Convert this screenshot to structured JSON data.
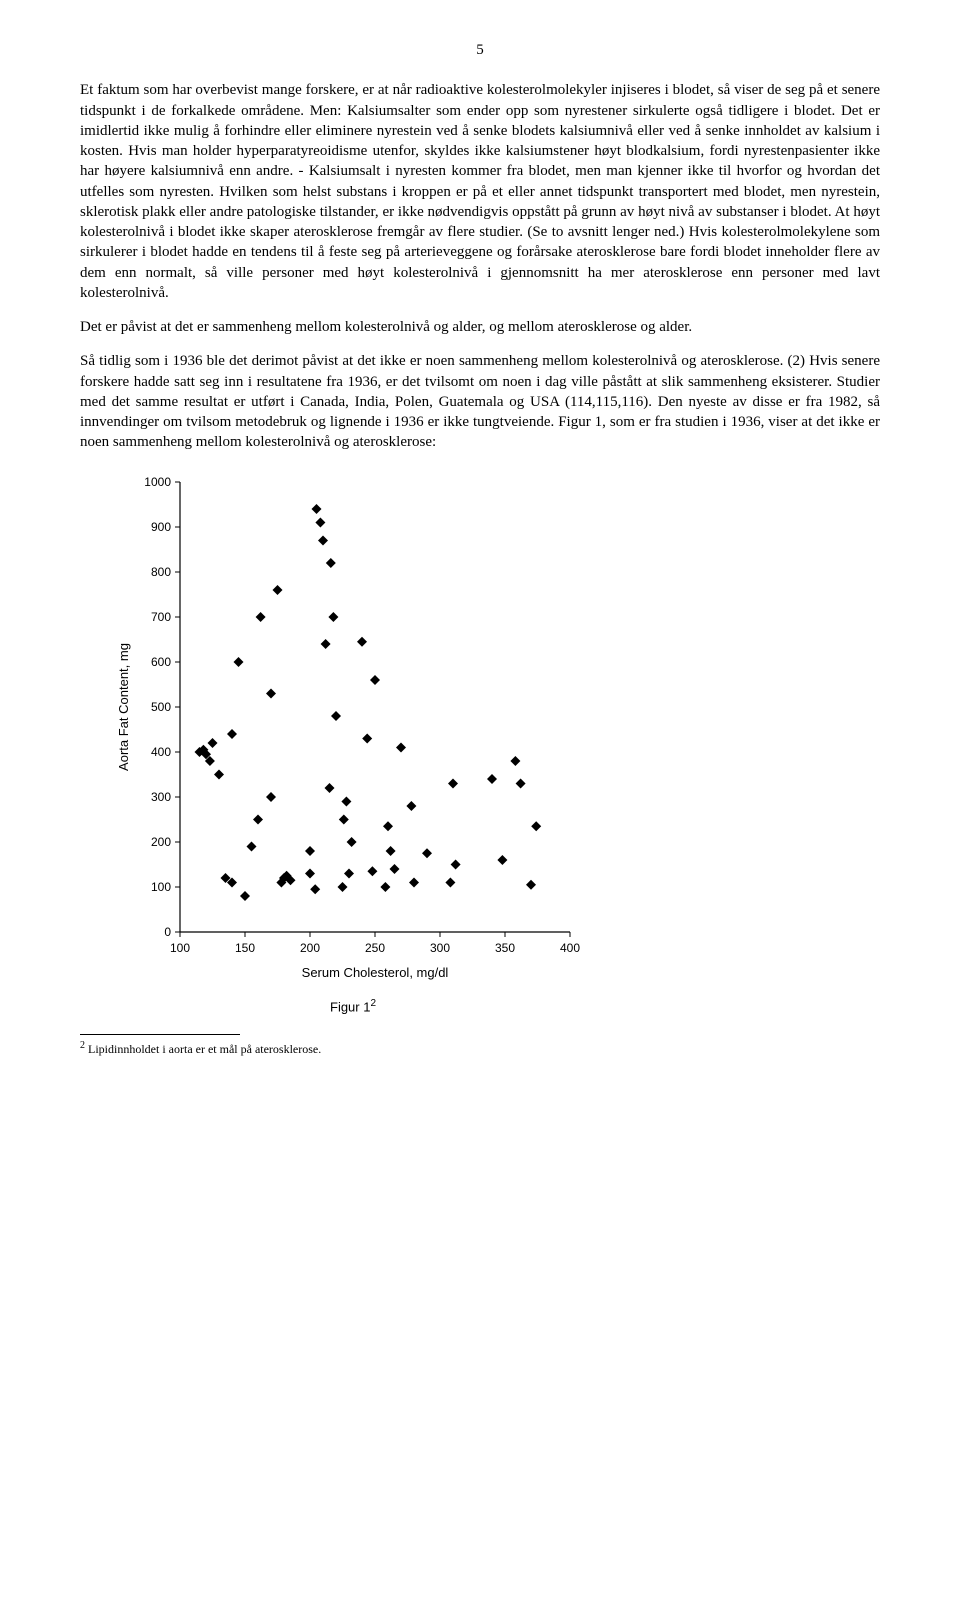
{
  "page_number": "5",
  "paragraphs": {
    "p1": "Et faktum som har overbevist mange forskere, er at når radioaktive kolesterolmolekyler injiseres i blodet, så viser de seg på et senere tidspunkt i de forkalkede områdene. Men: Kalsiumsalter som ender opp som nyrestener sirkulerte også tidligere i blodet. Det er imidlertid ikke mulig å forhindre eller eliminere nyrestein ved å senke blodets kalsiumnivå eller ved å senke innholdet av kalsium i kosten. Hvis man holder hyperparatyreoidisme utenfor, skyldes ikke kalsiumstener høyt blodkalsium, fordi nyrestenpasienter ikke har høyere kalsiumnivå enn andre. - Kalsiumsalt i nyresten kommer fra blodet, men man kjenner ikke til hvorfor og hvordan det utfelles som nyresten. Hvilken som helst substans i kroppen er på et eller annet tidspunkt transportert med blodet, men nyrestein, sklerotisk plakk eller andre patologiske tilstander, er ikke nødvendigvis oppstått på grunn av høyt nivå av substanser i blodet. At høyt kolesterolnivå i blodet ikke skaper aterosklerose fremgår av flere studier. (Se to avsnitt lenger ned.) Hvis kolesterolmolekylene som sirkulerer i blodet hadde en tendens til å feste seg på arterieveggene og forårsake aterosklerose bare fordi blodet inneholder flere av dem enn normalt, så ville personer med høyt kolesterolnivå i gjennomsnitt ha mer aterosklerose enn personer med lavt kolesterolnivå.",
    "p2": "Det er påvist at det er sammenheng mellom kolesterolnivå og alder, og mellom aterosklerose og alder.",
    "p3": "Så tidlig som i 1936 ble det derimot påvist at det ikke er noen sammenheng mellom kolesterolnivå og aterosklerose. (2) Hvis senere forskere hadde satt seg inn i resultatene fra 1936, er det tvilsomt om noen i dag ville påstått at slik sammenheng eksisterer. Studier med det samme resultat er utført i Canada, India, Polen, Guatemala og USA (114,115,116). Den nyeste av disse er fra 1982, så innvendinger om tvilsom metodebruk og lignende i 1936 er ikke tungtveiende. Figur 1, som er fra studien i 1936, viser at det ikke er noen sammenheng mellom kolesterolnivå og aterosklerose:"
  },
  "figure": {
    "caption": "Figur 1",
    "caption_sup": "2",
    "chart": {
      "type": "scatter",
      "xlabel": "Serum Cholesterol, mg/dl",
      "ylabel": "Aorta Fat Content, mg",
      "xlim": [
        100,
        400
      ],
      "ylim": [
        0,
        1000
      ],
      "xticks": [
        100,
        150,
        200,
        250,
        300,
        350,
        400
      ],
      "yticks": [
        0,
        100,
        200,
        300,
        400,
        500,
        600,
        700,
        800,
        900,
        1000
      ],
      "label_fontsize": 13,
      "tick_fontsize": 12,
      "marker_color": "#000000",
      "marker_size": 5,
      "background_color": "#ffffff",
      "axis_color": "#000000",
      "points": [
        [
          115,
          400
        ],
        [
          118,
          405
        ],
        [
          120,
          395
        ],
        [
          123,
          380
        ],
        [
          125,
          420
        ],
        [
          130,
          350
        ],
        [
          140,
          440
        ],
        [
          145,
          600
        ],
        [
          135,
          120
        ],
        [
          140,
          110
        ],
        [
          155,
          190
        ],
        [
          160,
          250
        ],
        [
          162,
          700
        ],
        [
          150,
          80
        ],
        [
          170,
          530
        ],
        [
          175,
          760
        ],
        [
          178,
          110
        ],
        [
          180,
          120
        ],
        [
          182,
          125
        ],
        [
          185,
          115
        ],
        [
          170,
          300
        ],
        [
          200,
          180
        ],
        [
          205,
          940
        ],
        [
          208,
          910
        ],
        [
          210,
          870
        ],
        [
          212,
          640
        ],
        [
          200,
          130
        ],
        [
          215,
          320
        ],
        [
          216,
          820
        ],
        [
          218,
          700
        ],
        [
          220,
          480
        ],
        [
          204,
          95
        ],
        [
          225,
          100
        ],
        [
          226,
          250
        ],
        [
          228,
          290
        ],
        [
          230,
          130
        ],
        [
          232,
          200
        ],
        [
          240,
          645
        ],
        [
          244,
          430
        ],
        [
          248,
          135
        ],
        [
          250,
          560
        ],
        [
          258,
          100
        ],
        [
          260,
          235
        ],
        [
          262,
          180
        ],
        [
          265,
          140
        ],
        [
          270,
          410
        ],
        [
          278,
          280
        ],
        [
          280,
          110
        ],
        [
          290,
          175
        ],
        [
          308,
          110
        ],
        [
          310,
          330
        ],
        [
          312,
          150
        ],
        [
          340,
          340
        ],
        [
          348,
          160
        ],
        [
          358,
          380
        ],
        [
          362,
          330
        ],
        [
          370,
          105
        ],
        [
          374,
          235
        ]
      ]
    }
  },
  "footnote": {
    "marker": "2",
    "text": " Lipidinnholdet i aorta er et mål på aterosklerose."
  }
}
